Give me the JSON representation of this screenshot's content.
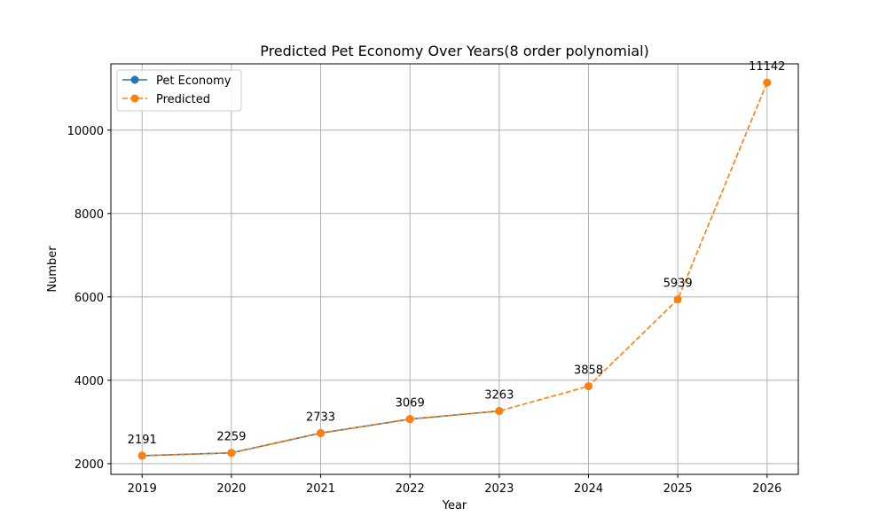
{
  "chart_data": {
    "type": "line",
    "title": "Predicted Pet Economy Over Years(8 order polynomial)",
    "xlabel": "Year",
    "ylabel": "Number",
    "x": [
      2019,
      2020,
      2021,
      2022,
      2023,
      2024,
      2025,
      2026
    ],
    "x_ticks": [
      "2019",
      "2020",
      "2021",
      "2022",
      "2023",
      "2024",
      "2025",
      "2026"
    ],
    "y_ticks": [
      2000,
      4000,
      6000,
      8000,
      10000
    ],
    "xlim": [
      2018.65,
      2026.35
    ],
    "ylim": [
      1743,
      11590
    ],
    "grid": true,
    "legend_position": "top-left",
    "series": [
      {
        "name": "Pet Economy",
        "color": "#1f77b4",
        "line_style": "solid",
        "marker": "circle",
        "x": [
          2019,
          2020,
          2021,
          2022,
          2023
        ],
        "values": [
          2191,
          2259,
          2733,
          3069,
          3263
        ]
      },
      {
        "name": "Predicted",
        "color": "#ff7f0e",
        "line_style": "dashed",
        "marker": "circle",
        "x": [
          2019,
          2020,
          2021,
          2022,
          2023,
          2024,
          2025,
          2026
        ],
        "values": [
          2191,
          2259,
          2733,
          3069,
          3263,
          3858,
          5939,
          11142
        ]
      }
    ],
    "data_labels": [
      "2191",
      "2259",
      "2733",
      "3069",
      "3263",
      "3858",
      "5939",
      "11142"
    ]
  }
}
